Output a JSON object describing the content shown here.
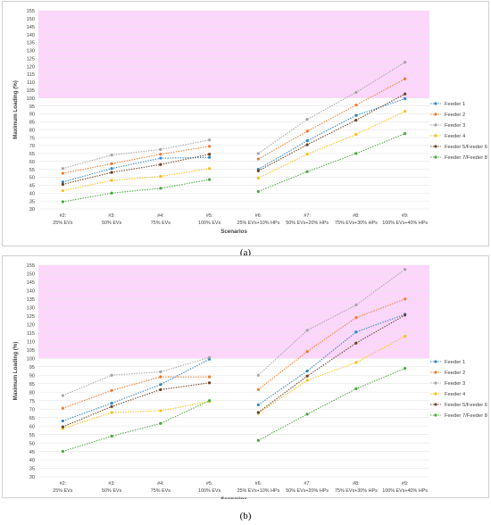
{
  "chart_data": [
    {
      "type": "line",
      "panel_caption": "(a)",
      "xlabel": "Scenarios",
      "ylabel": "Maximum Loading (%)",
      "ylim": [
        30,
        155
      ],
      "ytick_step": 5,
      "highlight_band": [
        100,
        155
      ],
      "categories": [
        [
          "#2:",
          "25% EVs"
        ],
        [
          "#3:",
          "50% EVs"
        ],
        [
          "#4:",
          "75% EVs"
        ],
        [
          "#5:",
          "100% EVs"
        ],
        [
          "#6:",
          "25% EVs+10% HPs"
        ],
        [
          "#7:",
          "50% EVs+20% HPs"
        ],
        [
          "#8:",
          "75% EVs+30% HPs"
        ],
        [
          "#9:",
          "100% EVs+40% HPs"
        ]
      ],
      "legend_position": "right",
      "series": [
        {
          "name": "Feeder 1",
          "values": [
            47,
            55.5,
            62,
            62.5,
            55,
            73,
            89,
            99.5
          ]
        },
        {
          "name": "Feeder 2",
          "values": [
            52.5,
            58.5,
            64.5,
            69.5,
            61.5,
            79,
            95.5,
            112
          ]
        },
        {
          "name": "Feeder 3",
          "values": [
            55.5,
            64,
            67.5,
            73.5,
            65,
            86.5,
            103.5,
            122.5
          ]
        },
        {
          "name": "Feeder 4",
          "values": [
            41.5,
            48,
            50.5,
            55.5,
            49.5,
            64.5,
            77,
            91.5
          ]
        },
        {
          "name": "Feeder 5/Feeder 6",
          "values": [
            45.5,
            53,
            58,
            64.5,
            54,
            70.5,
            86,
            102.5
          ]
        },
        {
          "name": "Feeder 7/Feeder 8",
          "values": [
            34.5,
            40,
            43,
            48.5,
            41,
            53.5,
            65,
            77.5
          ]
        }
      ]
    },
    {
      "type": "line",
      "panel_caption": "(b)",
      "xlabel": "Scenarios",
      "ylabel": "Maximum Loading (%)",
      "ylim": [
        30,
        155
      ],
      "ytick_step": 5,
      "highlight_band": [
        100,
        155
      ],
      "categories": [
        [
          "#2:",
          "25% EVs"
        ],
        [
          "#3:",
          "50% EVs"
        ],
        [
          "#4:",
          "75% EVs"
        ],
        [
          "#5:",
          "100% EVs"
        ],
        [
          "#6:",
          "25% EVs+10% HPs"
        ],
        [
          "#7:",
          "50% EVs+20% HPs"
        ],
        [
          "#8:",
          "75% EVs+30% HPs"
        ],
        [
          "#9:",
          "100% EVs+40% HPs"
        ]
      ],
      "legend_position": "right",
      "series": [
        {
          "name": "Feeder 1",
          "values": [
            63,
            73.5,
            84.5,
            99.5,
            72.5,
            92.5,
            115.5,
            126
          ]
        },
        {
          "name": "Feeder 2",
          "values": [
            70.5,
            81,
            89,
            89,
            81.5,
            104,
            124,
            135
          ]
        },
        {
          "name": "Feeder 3",
          "values": [
            78,
            90,
            92,
            100.5,
            90,
            116.5,
            131.5,
            152.5
          ]
        },
        {
          "name": "Feeder 4",
          "values": [
            58.5,
            68,
            69,
            74.5,
            67.5,
            87,
            97.5,
            113
          ]
        },
        {
          "name": "Feeder 5/Feeder 6",
          "values": [
            59.5,
            71.5,
            81.5,
            85.5,
            68,
            89.5,
            109,
            125.5
          ]
        },
        {
          "name": "Feeder 7/Feeder 8",
          "values": [
            45,
            54,
            61.5,
            75,
            51.5,
            67,
            82,
            94
          ]
        }
      ]
    }
  ],
  "colors": {
    "Feeder 1": "#2e86c8",
    "Feeder 2": "#ee7b30",
    "Feeder 3": "#a5a5a5",
    "Feeder 4": "#f6c01a",
    "Feeder 5/Feeder 6": "#6b4226",
    "Feeder 7/Feeder 8": "#4aa83f",
    "band": "#fcd6fb",
    "grid": "#e4e4e4",
    "axis_text": "#404040"
  }
}
